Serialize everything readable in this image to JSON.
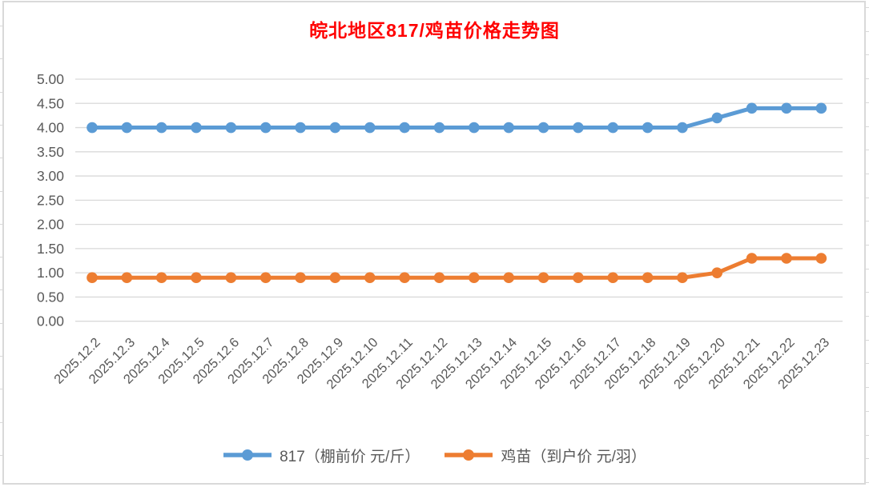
{
  "title": "皖北地区817/鸡苗价格走势图",
  "colors": {
    "title": "#ff0000",
    "axis_text": "#595959",
    "gridline": "#d9d9d9",
    "frame_border": "#d9d9d9",
    "series_817": "#5b9bd5",
    "series_jimiao": "#ed7d31"
  },
  "chart_data": {
    "type": "line",
    "title": "皖北地区817/鸡苗价格走势图",
    "x": [
      "2025.12.2",
      "2025.12.3",
      "2025.12.4",
      "2025.12.5",
      "2025.12.6",
      "2025.12.7",
      "2025.12.8",
      "2025.12.9",
      "2025.12.10",
      "2025.12.11",
      "2025.12.12",
      "2025.12.13",
      "2025.12.14",
      "2025.12.15",
      "2025.12.16",
      "2025.12.17",
      "2025.12.18",
      "2025.12.19",
      "2025.12.20",
      "2025.12.21",
      "2025.12.22",
      "2025.12.23"
    ],
    "series": [
      {
        "id": "817",
        "name": "817（棚前价 元/斤）",
        "color": "#5b9bd5",
        "values": [
          4.0,
          4.0,
          4.0,
          4.0,
          4.0,
          4.0,
          4.0,
          4.0,
          4.0,
          4.0,
          4.0,
          4.0,
          4.0,
          4.0,
          4.0,
          4.0,
          4.0,
          4.0,
          4.2,
          4.4,
          4.4,
          4.4
        ]
      },
      {
        "id": "jimiao",
        "name": "鸡苗（到户价 元/羽）",
        "color": "#ed7d31",
        "values": [
          0.9,
          0.9,
          0.9,
          0.9,
          0.9,
          0.9,
          0.9,
          0.9,
          0.9,
          0.9,
          0.9,
          0.9,
          0.9,
          0.9,
          0.9,
          0.9,
          0.9,
          0.9,
          1.0,
          1.3,
          1.3,
          1.3
        ]
      }
    ],
    "xlabel": "",
    "ylabel": "",
    "ylim": [
      0,
      5
    ],
    "ytick_step": 0.5,
    "ytick_labels": [
      "0.00",
      "0.50",
      "1.00",
      "1.50",
      "2.00",
      "2.50",
      "3.00",
      "3.50",
      "4.00",
      "4.50",
      "5.00"
    ],
    "grid": true,
    "legend_position": "bottom"
  }
}
